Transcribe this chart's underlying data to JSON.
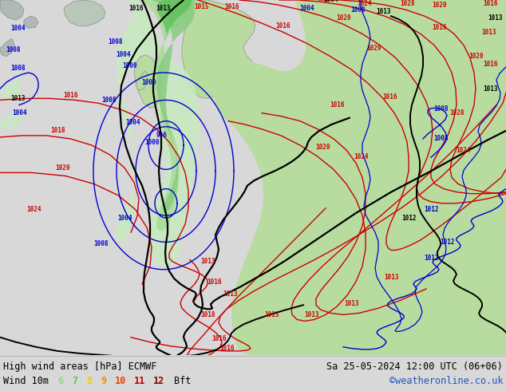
{
  "title_left": "High wind areas [hPa] ECMWF",
  "title_right": "Sa 25-05-2024 12:00 UTC (06+06)",
  "subtitle_left": "Wind 10m",
  "subtitle_right": "©weatheronline.co.uk",
  "bft_nums": [
    "6",
    "7",
    "8",
    "9",
    "10",
    "11",
    "12"
  ],
  "bft_colors": [
    "#90d878",
    "#68c040",
    "#f0d000",
    "#f09000",
    "#e84000",
    "#c00000",
    "#880000"
  ],
  "bg_color": "#d8d8d8",
  "ocean_color": "#d8d8d8",
  "land_color": "#b8dca0",
  "high_wind_light": "#c0e8b0",
  "high_wind_mid": "#90d080",
  "high_wind_strong": "#50c050",
  "low_color": "#a8d8f0",
  "red": "#cc0000",
  "blue": "#0000cc",
  "black": "#000000",
  "fig_width": 6.34,
  "fig_height": 4.9,
  "dpi": 100,
  "text_color": "#000000",
  "website_color": "#2255bb",
  "title_fontsize": 8.5,
  "label_fontsize": 8.5,
  "map_fontsize": 5.5
}
